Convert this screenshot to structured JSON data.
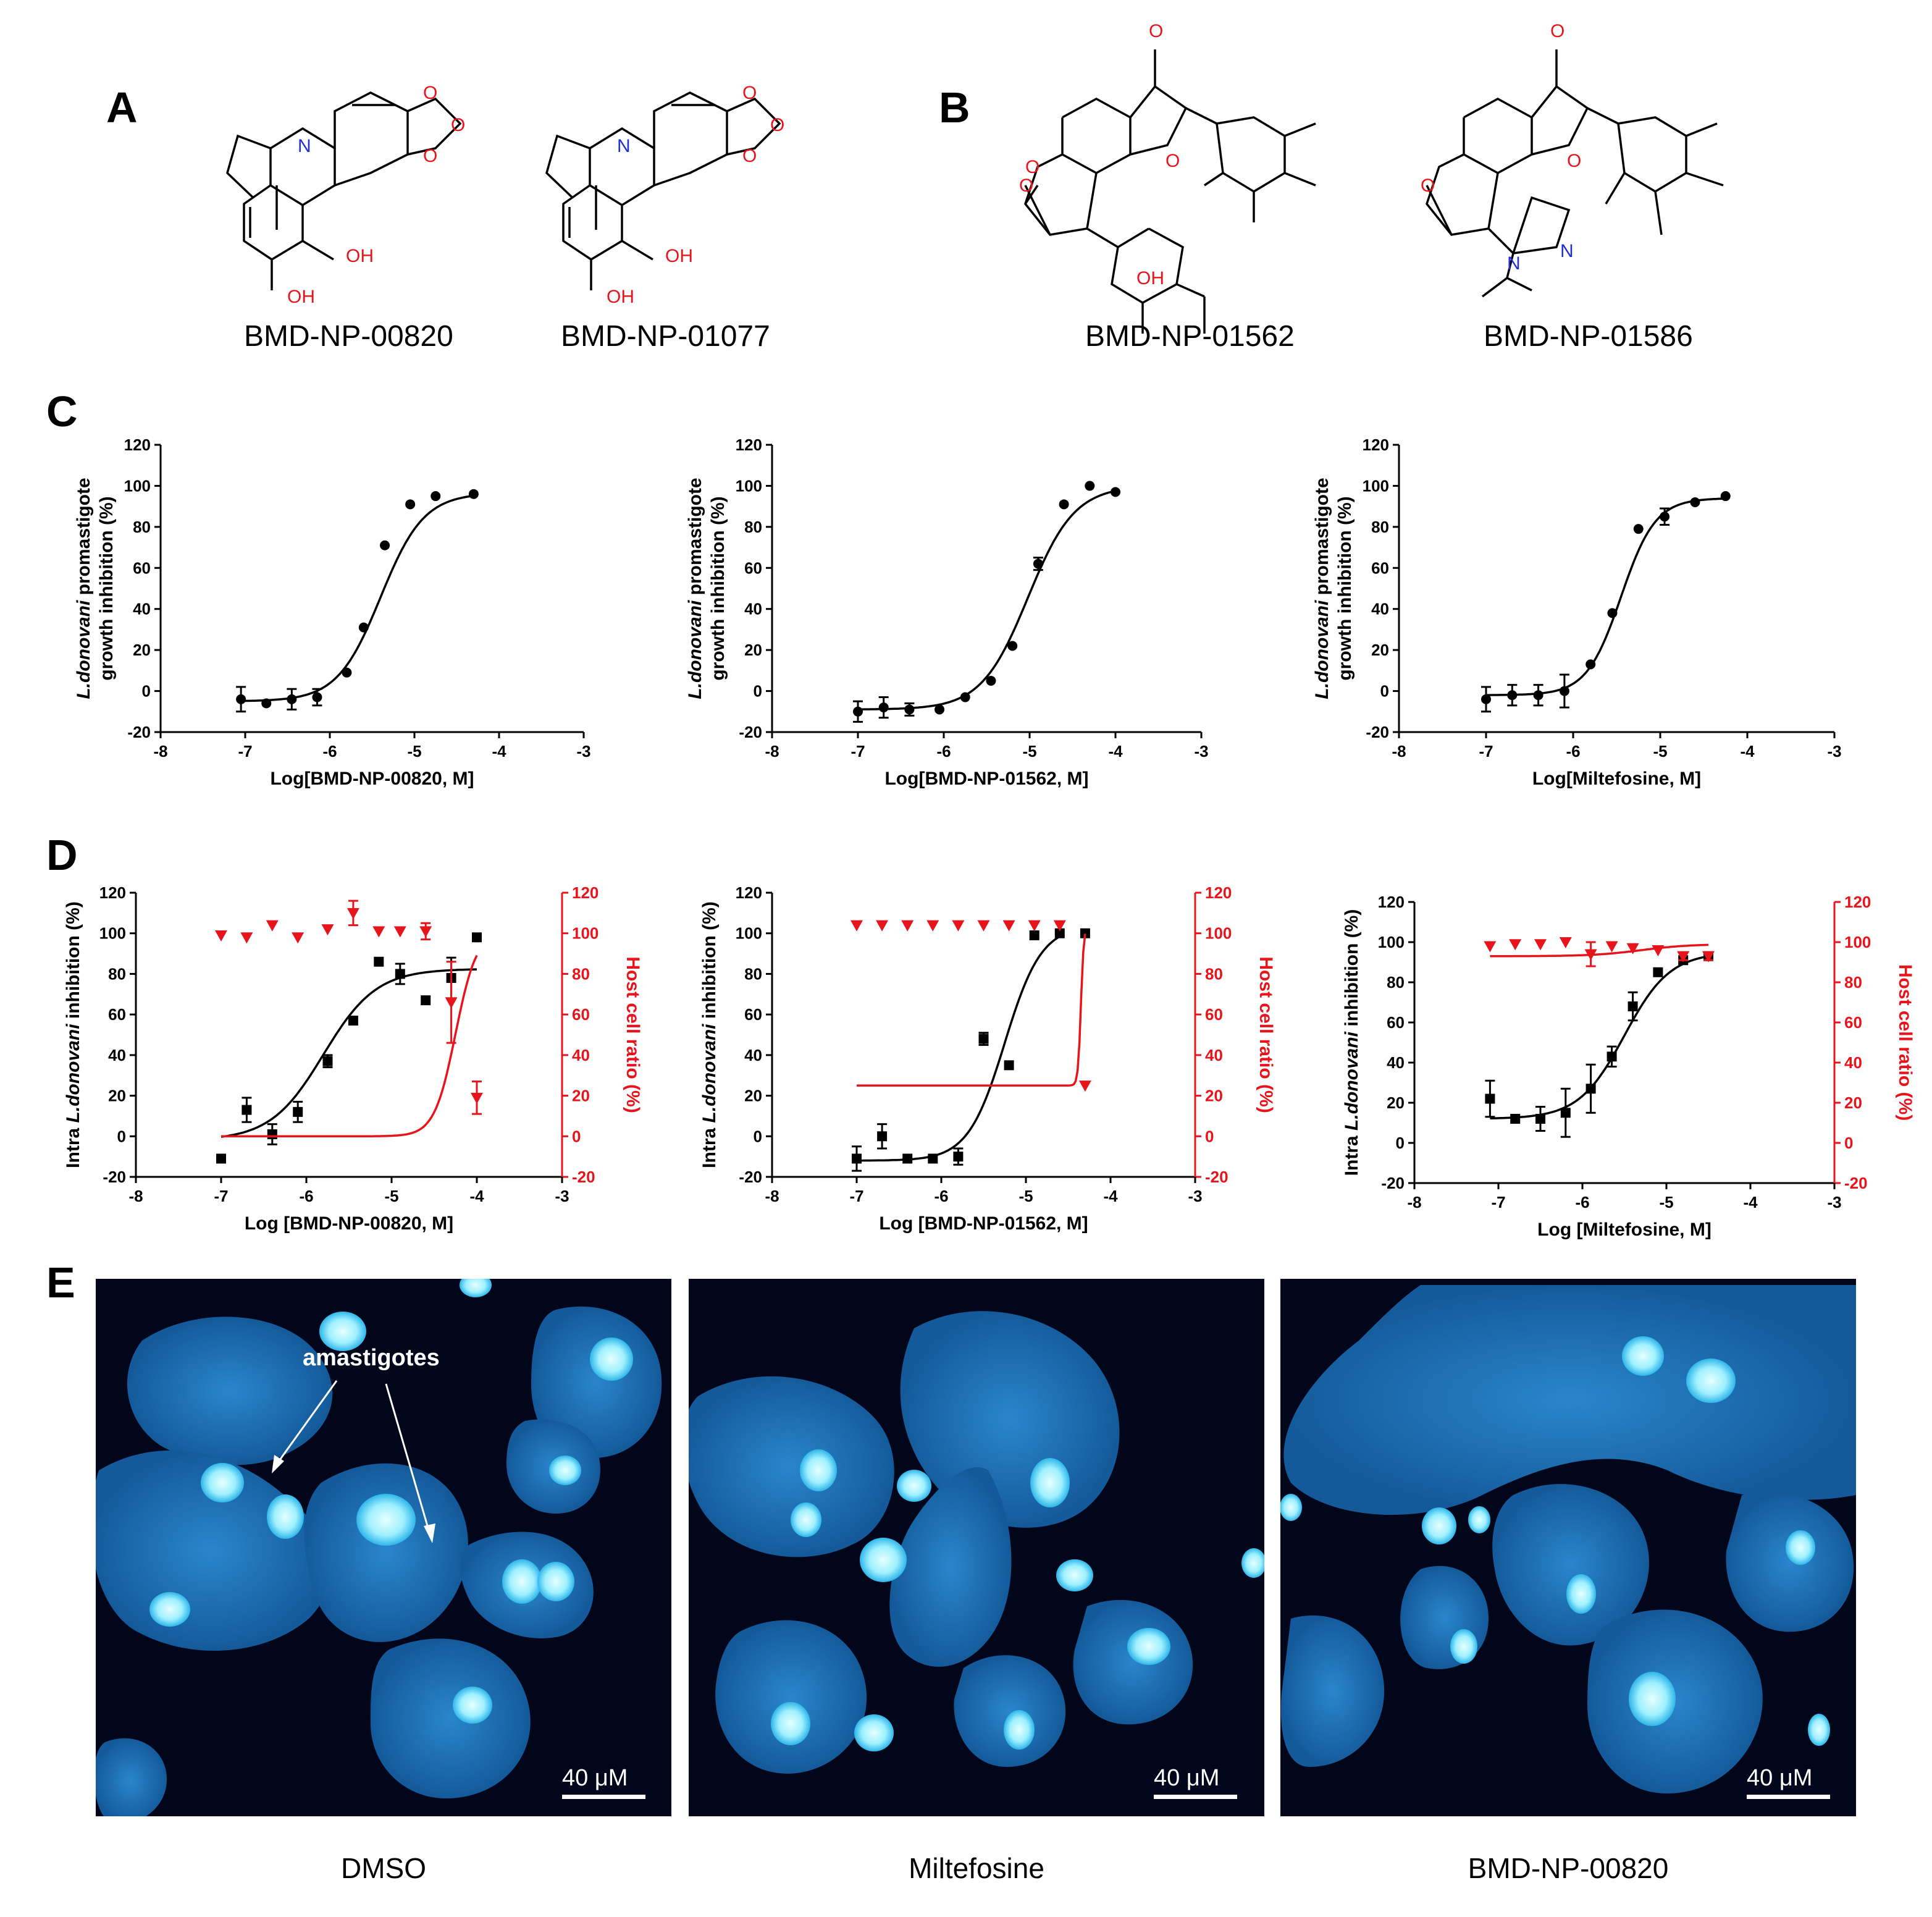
{
  "panels": {
    "A": {
      "label": "A",
      "compounds": [
        "BMD-NP-00820",
        "BMD-NP-01077"
      ],
      "atoms": {
        "n": "N",
        "o": "O",
        "oh": "OH"
      }
    },
    "B": {
      "label": "B",
      "compounds": [
        "BMD-NP-01562",
        "BMD-NP-01586"
      ],
      "atoms": {
        "o": "O",
        "n": "N",
        "oh": "OH"
      }
    },
    "C": {
      "label": "C"
    },
    "D": {
      "label": "D"
    },
    "E": {
      "label": "E",
      "annotation": "amastigotes",
      "scalebar": "40 μM",
      "captions": [
        "DMSO",
        "Miltefosine",
        "BMD-NP-00820"
      ]
    }
  },
  "colors": {
    "black": "#000000",
    "red": "#e8141b",
    "micro_bg": "#02061a",
    "cell": "#1d6bb0",
    "nucleus": "#bff7ff"
  },
  "chart_data": [
    {
      "type": "scatter",
      "panel": "C",
      "xlabel": "Log[BMD-NP-00820, M]",
      "ylabel_italic": "L.donovani",
      "ylabel_rest": " promastigote",
      "ylabel_line2": "growth inhibition (%)",
      "xlim": [
        -8,
        -3
      ],
      "ylim": [
        -20,
        120
      ],
      "xticks": [
        "-8",
        "-7",
        "-6",
        "-5",
        "-4",
        "-3"
      ],
      "yticks": [
        "-20",
        "0",
        "20",
        "40",
        "60",
        "80",
        "100",
        "120"
      ],
      "series": [
        {
          "marker": "circle",
          "color": "#000000",
          "x": [
            -7.05,
            -6.75,
            -6.45,
            -6.15,
            -5.8,
            -5.6,
            -5.35,
            -5.05,
            -4.75,
            -4.3
          ],
          "y": [
            -4,
            -6,
            -4,
            -3,
            9,
            31,
            71,
            91,
            95,
            96
          ],
          "err": [
            6,
            0,
            5,
            4,
            0,
            0,
            0,
            0,
            0,
            0
          ],
          "fit": {
            "bottom": -5,
            "top": 96.5,
            "logec50": -5.4,
            "hill": 1.7,
            "from": -7.05,
            "to": -4.3
          }
        }
      ]
    },
    {
      "type": "scatter",
      "panel": "C",
      "xlabel": "Log[BMD-NP-01562, M]",
      "ylabel_italic": "L.donovani",
      "ylabel_rest": " promastigote",
      "ylabel_line2": "growth inhibition (%)",
      "xlim": [
        -8,
        -3
      ],
      "ylim": [
        -20,
        120
      ],
      "xticks": [
        "-8",
        "-7",
        "-6",
        "-5",
        "-4",
        "-3"
      ],
      "yticks": [
        "-20",
        "0",
        "20",
        "40",
        "60",
        "80",
        "100",
        "120"
      ],
      "series": [
        {
          "marker": "circle",
          "color": "#000000",
          "x": [
            -7.0,
            -6.7,
            -6.4,
            -6.05,
            -5.75,
            -5.45,
            -5.2,
            -4.9,
            -4.6,
            -4.3,
            -4.0
          ],
          "y": [
            -10,
            -8,
            -9,
            -9,
            -3,
            5,
            22,
            62,
            91,
            100,
            97
          ],
          "err": [
            5,
            5,
            3,
            0,
            0,
            0,
            0,
            3,
            0,
            0,
            0
          ],
          "fit": {
            "bottom": -9,
            "top": 100,
            "logec50": -5.02,
            "hill": 1.6,
            "from": -7.0,
            "to": -4.0
          }
        }
      ]
    },
    {
      "type": "scatter",
      "panel": "C",
      "xlabel": "Log[Miltefosine, M]",
      "ylabel_italic": "L.donovani",
      "ylabel_rest": " promastigote",
      "ylabel_line2": "growth inhibition (%)",
      "xlim": [
        -8,
        -3
      ],
      "ylim": [
        -20,
        120
      ],
      "xticks": [
        "-8",
        "-7",
        "-6",
        "-5",
        "-4",
        "-3"
      ],
      "yticks": [
        "-20",
        "0",
        "20",
        "40",
        "60",
        "80",
        "100",
        "120"
      ],
      "series": [
        {
          "marker": "circle",
          "color": "#000000",
          "x": [
            -7.0,
            -6.7,
            -6.4,
            -6.1,
            -5.8,
            -5.55,
            -5.25,
            -4.95,
            -4.6,
            -4.25
          ],
          "y": [
            -4,
            -2,
            -2,
            0,
            13,
            38,
            79,
            85,
            92,
            95
          ],
          "err": [
            6,
            5,
            5,
            8,
            0,
            0,
            0,
            4,
            0,
            0
          ],
          "fit": {
            "bottom": -2,
            "top": 94,
            "logec50": -5.45,
            "hill": 2.2,
            "from": -7.0,
            "to": -4.25
          }
        }
      ]
    },
    {
      "type": "scatter",
      "panel": "D",
      "xlabel": "Log [BMD-NP-00820, M]",
      "ylabel_pre": "Intra ",
      "ylabel_italic": "L.donovani",
      "ylabel_rest": " inhibition (%)",
      "y2label": "Host cell ratio (%)",
      "xlim": [
        -8,
        -3
      ],
      "ylim": [
        -20,
        120
      ],
      "xticks": [
        "-8",
        "-7",
        "-6",
        "-5",
        "-4",
        "-3"
      ],
      "yticks": [
        "-20",
        "0",
        "20",
        "40",
        "60",
        "80",
        "100",
        "120"
      ],
      "y2ticks": [
        "-20",
        "0",
        "20",
        "40",
        "60",
        "80",
        "100",
        "120"
      ],
      "series": [
        {
          "marker": "square",
          "color": "#000000",
          "x": [
            -7.0,
            -6.7,
            -6.4,
            -6.1,
            -5.75,
            -5.45,
            -5.15,
            -4.9,
            -4.6,
            -4.3,
            -4.0
          ],
          "y": [
            -11,
            13,
            1,
            12,
            37,
            57,
            86,
            80,
            67,
            78,
            98
          ],
          "err": [
            0,
            6,
            5,
            5,
            3,
            0,
            0,
            5,
            0,
            10,
            0
          ],
          "fit": {
            "bottom": -2,
            "top": 82.5,
            "logec50": -5.8,
            "hill": 1.4,
            "from": -7.0,
            "to": -4.0
          }
        },
        {
          "marker": "triangle-down",
          "color": "#e8141b",
          "x": [
            -7.0,
            -6.7,
            -6.4,
            -6.1,
            -5.75,
            -5.45,
            -5.15,
            -4.9,
            -4.6,
            -4.3,
            -4.0
          ],
          "y": [
            99,
            98,
            104,
            98,
            102,
            110,
            101,
            101,
            101,
            66,
            19
          ],
          "err": [
            0,
            0,
            0,
            0,
            0,
            6,
            0,
            0,
            4,
            20,
            8
          ],
          "fit": {
            "bottom": 0,
            "top": 101,
            "logec50": -4.25,
            "hill": 3.5,
            "from": -7.0,
            "to": -4.0
          }
        }
      ]
    },
    {
      "type": "scatter",
      "panel": "D",
      "xlabel": "Log [BMD-NP-01562, M]",
      "ylabel_pre": "Intra ",
      "ylabel_italic": "L.donovani",
      "ylabel_rest": " inhibition (%)",
      "y2label": "Host cell ratio (%)",
      "xlim": [
        -8,
        -3
      ],
      "ylim": [
        -20,
        120
      ],
      "xticks": [
        "-8",
        "-7",
        "-6",
        "-5",
        "-4",
        "-3"
      ],
      "yticks": [
        "-20",
        "0",
        "20",
        "40",
        "60",
        "80",
        "100",
        "120"
      ],
      "y2ticks": [
        "-20",
        "0",
        "20",
        "40",
        "60",
        "80",
        "100",
        "120"
      ],
      "series": [
        {
          "marker": "square",
          "color": "#000000",
          "x": [
            -7.0,
            -6.7,
            -6.4,
            -6.1,
            -5.8,
            -5.5,
            -5.2,
            -4.9,
            -4.6,
            -4.3
          ],
          "y": [
            -11,
            0,
            -11,
            -11,
            -10,
            48,
            35,
            99,
            100,
            100
          ],
          "err": [
            6,
            6,
            0,
            0,
            4,
            3,
            0,
            0,
            0,
            0
          ],
          "fit": {
            "bottom": -12,
            "top": 104,
            "logec50": -5.25,
            "hill": 2.0,
            "from": -7.0,
            "to": -4.55
          }
        },
        {
          "marker": "triangle-down",
          "color": "#e8141b",
          "x": [
            -7.0,
            -6.7,
            -6.4,
            -6.1,
            -5.8,
            -5.5,
            -5.2,
            -4.9,
            -4.6,
            -4.3
          ],
          "y": [
            104,
            104,
            104,
            104,
            104,
            104,
            104,
            104,
            104,
            25
          ],
          "err": [
            0,
            0,
            0,
            0,
            0,
            0,
            0,
            0,
            0,
            0
          ],
          "fit": {
            "bottom": 25,
            "top": 104,
            "logec50": -4.35,
            "hill": 25,
            "from": -7.0,
            "to": -4.3
          }
        }
      ]
    },
    {
      "type": "scatter",
      "panel": "D",
      "xlabel": "Log [Miltefosine, M]",
      "ylabel_pre": "Intra ",
      "ylabel_italic": "L.donovani",
      "ylabel_rest": " inhibition (%)",
      "y2label": "Host cell ratio (%)",
      "xlim": [
        -8,
        -3
      ],
      "ylim": [
        -20,
        120
      ],
      "xticks": [
        "-8",
        "-7",
        "-6",
        "-5",
        "-4",
        "-3"
      ],
      "yticks": [
        "-20",
        "0",
        "20",
        "40",
        "60",
        "80",
        "100",
        "120"
      ],
      "y2ticks": [
        "-20",
        "0",
        "20",
        "40",
        "60",
        "80",
        "100",
        "120"
      ],
      "series": [
        {
          "marker": "square",
          "color": "#000000",
          "x": [
            -7.1,
            -6.8,
            -6.5,
            -6.2,
            -5.9,
            -5.65,
            -5.4,
            -5.1,
            -4.8,
            -4.5
          ],
          "y": [
            22,
            12,
            12,
            15,
            27,
            43,
            68,
            85,
            91,
            93
          ],
          "err": [
            9,
            0,
            6,
            12,
            12,
            5,
            7,
            0,
            0,
            0
          ],
          "fit": {
            "bottom": 12,
            "top": 95,
            "logec50": -5.5,
            "hill": 1.6,
            "from": -7.1,
            "to": -4.5
          }
        },
        {
          "marker": "triangle-down",
          "color": "#e8141b",
          "x": [
            -7.1,
            -6.8,
            -6.5,
            -6.2,
            -5.9,
            -5.65,
            -5.4,
            -5.1,
            -4.8,
            -4.5
          ],
          "y": [
            98,
            99,
            99,
            100,
            94,
            98,
            97,
            96,
            93,
            93
          ],
          "err": [
            0,
            0,
            0,
            0,
            6,
            0,
            0,
            0,
            2,
            2
          ],
          "fit": {
            "bottom": 93,
            "top": 99,
            "logec50": -5.3,
            "hill": 1.5,
            "from": -7.1,
            "to": -4.5
          }
        }
      ]
    }
  ]
}
